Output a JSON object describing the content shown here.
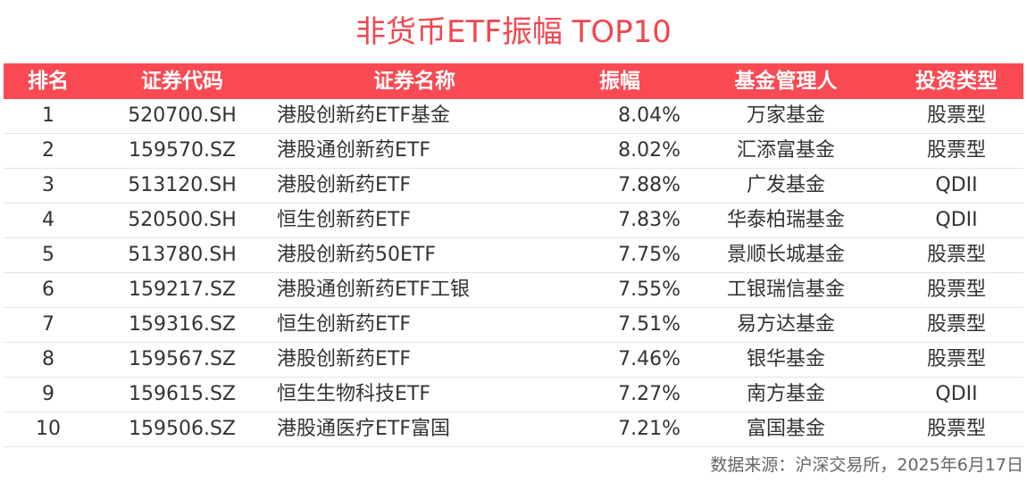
{
  "chart_data": {
    "type": "table",
    "title": "非货币ETF振幅 TOP10",
    "columns": [
      "排名",
      "证券代码",
      "证券名称",
      "振幅",
      "基金管理人",
      "投资类型"
    ],
    "rows": [
      {
        "rank": "1",
        "code": "520700.SH",
        "name": "港股创新药ETF基金",
        "amplitude": "8.04%",
        "manager": "万家基金",
        "type": "股票型"
      },
      {
        "rank": "2",
        "code": "159570.SZ",
        "name": "港股通创新药ETF",
        "amplitude": "8.02%",
        "manager": "汇添富基金",
        "type": "股票型"
      },
      {
        "rank": "3",
        "code": "513120.SH",
        "name": "港股创新药ETF",
        "amplitude": "7.88%",
        "manager": "广发基金",
        "type": "QDII"
      },
      {
        "rank": "4",
        "code": "520500.SH",
        "name": "恒生创新药ETF",
        "amplitude": "7.83%",
        "manager": "华泰柏瑞基金",
        "type": "QDII"
      },
      {
        "rank": "5",
        "code": "513780.SH",
        "name": "港股创新药50ETF",
        "amplitude": "7.75%",
        "manager": "景顺长城基金",
        "type": "股票型"
      },
      {
        "rank": "6",
        "code": "159217.SZ",
        "name": "港股通创新药ETF工银",
        "amplitude": "7.55%",
        "manager": "工银瑞信基金",
        "type": "股票型"
      },
      {
        "rank": "7",
        "code": "159316.SZ",
        "name": "恒生创新药ETF",
        "amplitude": "7.51%",
        "manager": "易方达基金",
        "type": "股票型"
      },
      {
        "rank": "8",
        "code": "159567.SZ",
        "name": "港股创新药ETF",
        "amplitude": "7.46%",
        "manager": "银华基金",
        "type": "股票型"
      },
      {
        "rank": "9",
        "code": "159615.SZ",
        "name": "恒生生物科技ETF",
        "amplitude": "7.27%",
        "manager": "南方基金",
        "type": "QDII"
      },
      {
        "rank": "10",
        "code": "159506.SZ",
        "name": "港股通医疗ETF富国",
        "amplitude": "7.21%",
        "manager": "富国基金",
        "type": "股票型"
      }
    ],
    "source": "数据来源：沪深交易所，2025年6月17日"
  },
  "colors": {
    "title": "#f0474f",
    "header_bg": "#f94a54",
    "header_text": "#ffffff",
    "row_divider": "#e4e4e4"
  }
}
